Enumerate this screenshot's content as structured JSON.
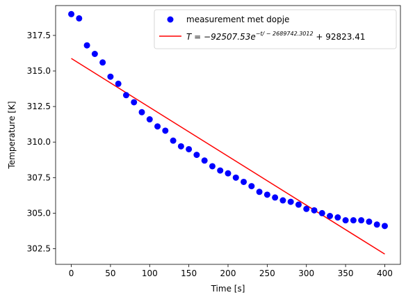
{
  "chart_data": {
    "type": "scatter",
    "xlabel": "Time [s]",
    "ylabel": "Temperature [K]",
    "xlim": [
      -20,
      420
    ],
    "ylim": [
      301.4,
      319.6
    ],
    "x_ticks": [
      0,
      50,
      100,
      150,
      200,
      250,
      300,
      350,
      400
    ],
    "x_tick_labels": [
      "0",
      "50",
      "100",
      "150",
      "200",
      "250",
      "300",
      "350",
      "400"
    ],
    "y_ticks": [
      302.5,
      305.0,
      307.5,
      310.0,
      312.5,
      315.0,
      317.5
    ],
    "y_tick_labels": [
      "302.5",
      "305.0",
      "307.5",
      "310.0",
      "312.5",
      "315.0",
      "317.5"
    ],
    "legend_position": "top-right",
    "series": [
      {
        "name": "measurement met dopje",
        "kind": "scatter",
        "color": "#0000ff",
        "x": [
          0,
          10,
          20,
          30,
          40,
          50,
          60,
          70,
          80,
          90,
          100,
          110,
          120,
          130,
          140,
          150,
          160,
          170,
          180,
          190,
          200,
          210,
          220,
          230,
          240,
          250,
          260,
          270,
          280,
          290,
          300,
          310,
          320,
          330,
          340,
          350,
          360,
          370,
          380,
          390,
          400
        ],
        "y": [
          319.0,
          318.7,
          316.8,
          316.2,
          315.6,
          314.6,
          314.1,
          313.3,
          312.8,
          312.1,
          311.6,
          311.1,
          310.8,
          310.1,
          309.7,
          309.5,
          309.1,
          308.7,
          308.3,
          308.0,
          307.8,
          307.5,
          307.2,
          306.9,
          306.5,
          306.3,
          306.1,
          305.9,
          305.8,
          305.6,
          305.3,
          305.2,
          305.0,
          304.8,
          304.7,
          304.5,
          304.5,
          304.5,
          304.4,
          304.2,
          304.1
        ]
      },
      {
        "name": "T = -92507.53e^{-t/-2689742.3012} + 92823.41",
        "kind": "line",
        "color": "#ff0000",
        "x": [
          0,
          400
        ],
        "y": [
          315.88,
          302.12
        ]
      }
    ]
  },
  "legend": {
    "scatter_label": "measurement met dopje",
    "fit_prefix": "T = −92507.53",
    "fit_base": "e",
    "fit_exponent": "−t/ − 2689742.3012",
    "fit_suffix": " + 92823.41"
  }
}
